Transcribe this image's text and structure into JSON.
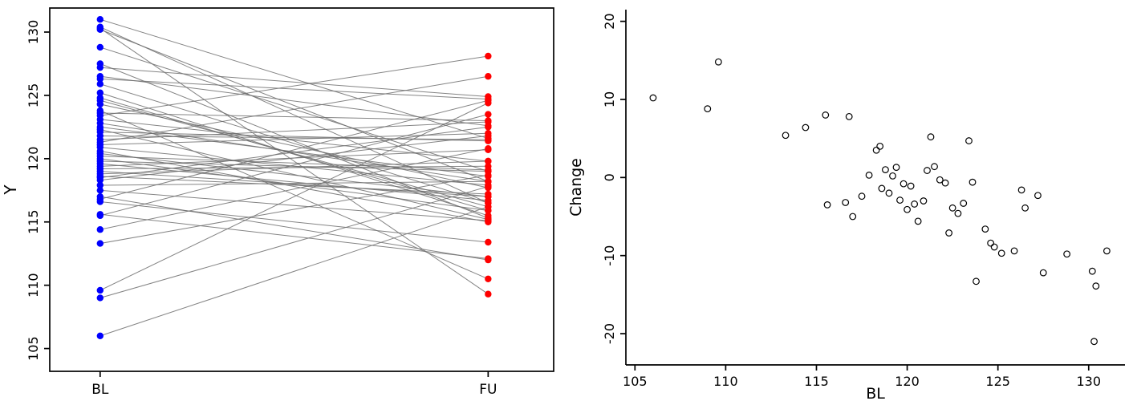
{
  "page": {
    "background": "#ffffff"
  },
  "chart_data": [
    {
      "type": "line",
      "subtype": "paired-spaghetti-plot",
      "title": "",
      "xlabel": "",
      "ylabel": "Y",
      "xticklabels": [
        "BL",
        "FU"
      ],
      "yticks": [
        105,
        110,
        115,
        120,
        125,
        130
      ],
      "ylim": [
        105,
        130
      ],
      "ylim_extended": [
        103.2,
        131.9
      ],
      "grid": false,
      "legend": false,
      "point_color_bl": "#0000FF",
      "point_color_fu": "#FF0000",
      "line_color": "#6e6e6e",
      "pairs": [
        [
          106.0,
          116.2
        ],
        [
          109.0,
          117.8
        ],
        [
          109.6,
          124.4
        ],
        [
          113.3,
          118.7
        ],
        [
          114.4,
          120.8
        ],
        [
          115.5,
          123.5
        ],
        [
          115.6,
          112.1
        ],
        [
          116.6,
          113.4
        ],
        [
          116.8,
          124.6
        ],
        [
          117.0,
          112.0
        ],
        [
          117.5,
          115.1
        ],
        [
          117.9,
          118.2
        ],
        [
          118.3,
          121.8
        ],
        [
          118.5,
          122.5
        ],
        [
          118.6,
          117.2
        ],
        [
          118.8,
          119.8
        ],
        [
          119.0,
          117.0
        ],
        [
          119.2,
          119.4
        ],
        [
          119.4,
          120.7
        ],
        [
          119.6,
          116.7
        ],
        [
          119.8,
          119.0
        ],
        [
          120.0,
          115.9
        ],
        [
          120.2,
          119.1
        ],
        [
          120.4,
          117.0
        ],
        [
          120.6,
          115.0
        ],
        [
          120.9,
          117.9
        ],
        [
          121.1,
          122.0
        ],
        [
          121.3,
          126.5
        ],
        [
          121.5,
          122.9
        ],
        [
          121.8,
          121.5
        ],
        [
          122.1,
          121.4
        ],
        [
          122.3,
          115.2
        ],
        [
          122.5,
          118.6
        ],
        [
          122.8,
          118.2
        ],
        [
          123.1,
          119.8
        ],
        [
          123.4,
          128.1
        ],
        [
          123.6,
          123.0
        ],
        [
          123.8,
          110.5
        ],
        [
          124.3,
          117.7
        ],
        [
          124.6,
          116.2
        ],
        [
          124.8,
          115.9
        ],
        [
          125.2,
          115.5
        ],
        [
          125.9,
          116.5
        ],
        [
          126.3,
          124.7
        ],
        [
          126.5,
          122.6
        ],
        [
          127.2,
          124.9
        ],
        [
          127.5,
          115.3
        ],
        [
          128.8,
          119.0
        ],
        [
          130.2,
          118.2
        ],
        [
          130.3,
          109.3
        ],
        [
          130.4,
          116.5
        ],
        [
          131.0,
          121.6
        ]
      ]
    },
    {
      "type": "scatter",
      "title": "",
      "xlabel": "BL",
      "ylabel": "Change",
      "xticks": [
        105,
        110,
        115,
        120,
        125,
        130
      ],
      "yticks": [
        -20,
        -10,
        0,
        10,
        20
      ],
      "xlim": [
        105,
        131
      ],
      "ylim": [
        -21,
        15
      ],
      "xlim_extended": [
        104.5,
        132.0
      ],
      "ylim_extended": [
        -24.0,
        21.5
      ],
      "grid": false,
      "legend": false,
      "marker": "open-circle",
      "point_color": "#000000",
      "x": [
        106.0,
        109.0,
        109.6,
        113.3,
        114.4,
        115.5,
        115.6,
        116.6,
        116.8,
        117.0,
        117.5,
        117.9,
        118.3,
        118.5,
        118.6,
        118.8,
        119.0,
        119.2,
        119.4,
        119.6,
        119.8,
        120.0,
        120.2,
        120.4,
        120.6,
        120.9,
        121.1,
        121.3,
        121.5,
        121.8,
        122.1,
        122.3,
        122.5,
        122.8,
        123.1,
        123.4,
        123.6,
        123.8,
        124.3,
        124.6,
        124.8,
        125.2,
        125.9,
        126.3,
        126.5,
        127.2,
        127.5,
        128.8,
        130.2,
        130.3,
        130.4,
        131.0
      ],
      "y": [
        10.2,
        8.8,
        14.8,
        5.4,
        6.4,
        8.0,
        -3.5,
        -3.2,
        7.8,
        -5.0,
        -2.4,
        0.3,
        3.5,
        4.0,
        -1.4,
        1.0,
        -2.0,
        0.2,
        1.3,
        -2.9,
        -0.8,
        -4.1,
        -1.1,
        -3.4,
        -5.6,
        -3.0,
        0.9,
        5.2,
        1.4,
        -0.3,
        -0.7,
        -7.1,
        -3.9,
        -4.6,
        -3.3,
        4.7,
        -0.6,
        -13.3,
        -6.6,
        -8.4,
        -8.9,
        -9.7,
        -9.4,
        -1.6,
        -3.9,
        -2.3,
        -12.2,
        -9.8,
        -12.0,
        -21.0,
        -13.9,
        -9.4
      ]
    }
  ]
}
